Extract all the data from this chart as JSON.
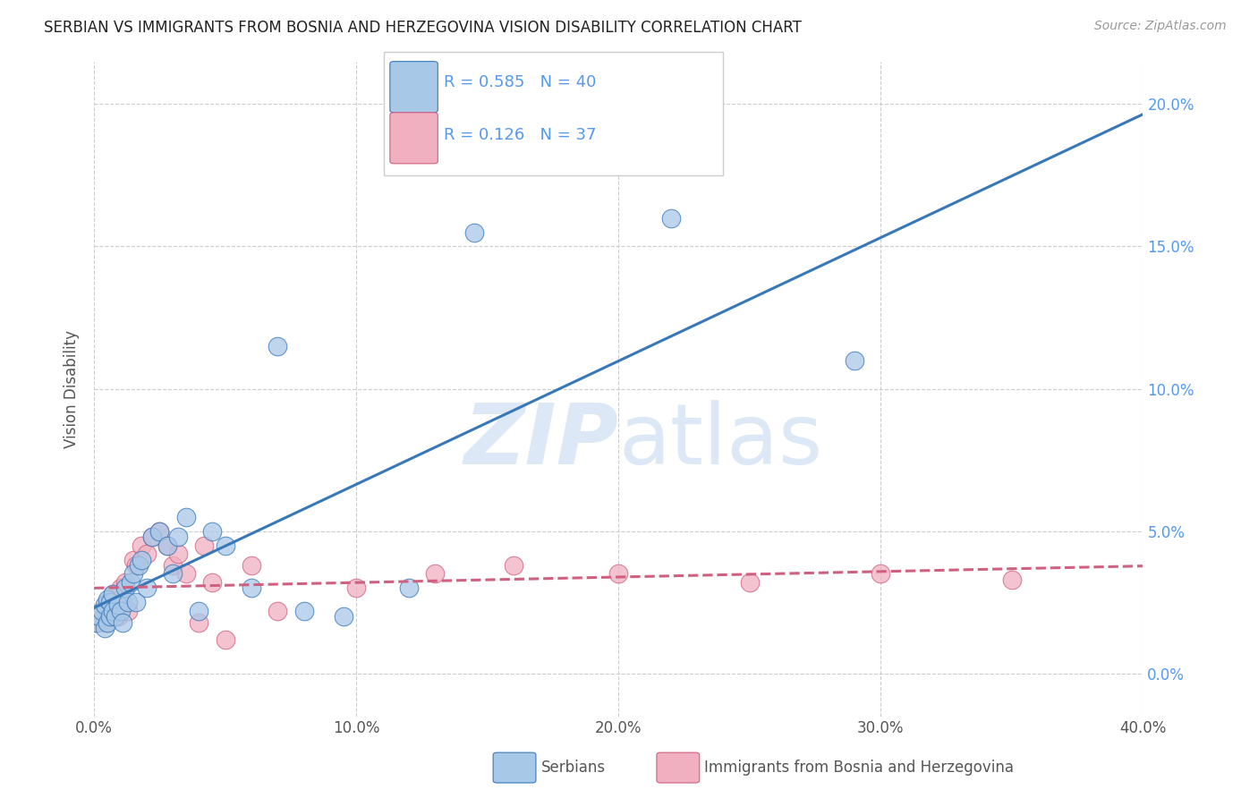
{
  "title": "SERBIAN VS IMMIGRANTS FROM BOSNIA AND HERZEGOVINA VISION DISABILITY CORRELATION CHART",
  "source": "Source: ZipAtlas.com",
  "xlabel": "",
  "ylabel": "Vision Disability",
  "xlim": [
    0.0,
    0.4
  ],
  "ylim": [
    -0.015,
    0.215
  ],
  "xticks": [
    0.0,
    0.1,
    0.2,
    0.3,
    0.4
  ],
  "yticks": [
    0.0,
    0.05,
    0.1,
    0.15,
    0.2
  ],
  "xtick_labels": [
    "0.0%",
    "10.0%",
    "20.0%",
    "30.0%",
    "40.0%"
  ],
  "ytick_labels": [
    "0.0%",
    "5.0%",
    "10.0%",
    "15.0%",
    "20.0%"
  ],
  "series": [
    {
      "name": "Serbians",
      "R": 0.585,
      "N": 40,
      "color": "#a8c8e8",
      "line_color": "#3878b8",
      "x": [
        0.001,
        0.002,
        0.003,
        0.004,
        0.004,
        0.005,
        0.005,
        0.006,
        0.006,
        0.007,
        0.007,
        0.008,
        0.009,
        0.01,
        0.011,
        0.012,
        0.013,
        0.014,
        0.015,
        0.016,
        0.017,
        0.018,
        0.02,
        0.022,
        0.025,
        0.028,
        0.03,
        0.032,
        0.035,
        0.04,
        0.045,
        0.05,
        0.06,
        0.07,
        0.08,
        0.095,
        0.12,
        0.145,
        0.22,
        0.29
      ],
      "y": [
        0.018,
        0.02,
        0.022,
        0.016,
        0.024,
        0.018,
        0.026,
        0.02,
        0.025,
        0.022,
        0.028,
        0.02,
        0.024,
        0.022,
        0.018,
        0.03,
        0.025,
        0.032,
        0.035,
        0.025,
        0.038,
        0.04,
        0.03,
        0.048,
        0.05,
        0.045,
        0.035,
        0.048,
        0.055,
        0.022,
        0.05,
        0.045,
        0.03,
        0.115,
        0.022,
        0.02,
        0.03,
        0.155,
        0.16,
        0.11
      ]
    },
    {
      "name": "Immigrants from Bosnia and Herzegovina",
      "R": 0.126,
      "N": 37,
      "color": "#f0b0c0",
      "line_color": "#d06080",
      "x": [
        0.001,
        0.002,
        0.003,
        0.004,
        0.005,
        0.005,
        0.006,
        0.007,
        0.008,
        0.009,
        0.01,
        0.011,
        0.012,
        0.013,
        0.015,
        0.016,
        0.018,
        0.02,
        0.022,
        0.025,
        0.028,
        0.03,
        0.032,
        0.035,
        0.04,
        0.042,
        0.045,
        0.05,
        0.06,
        0.07,
        0.1,
        0.13,
        0.16,
        0.2,
        0.25,
        0.3,
        0.35
      ],
      "y": [
        0.018,
        0.02,
        0.022,
        0.018,
        0.025,
        0.02,
        0.022,
        0.028,
        0.022,
        0.02,
        0.03,
        0.025,
        0.032,
        0.022,
        0.04,
        0.038,
        0.045,
        0.042,
        0.048,
        0.05,
        0.045,
        0.038,
        0.042,
        0.035,
        0.018,
        0.045,
        0.032,
        0.012,
        0.038,
        0.022,
        0.03,
        0.035,
        0.038,
        0.035,
        0.032,
        0.035,
        0.033
      ]
    }
  ],
  "background_color": "#ffffff",
  "grid_color": "#cccccc",
  "title_color": "#222222",
  "axis_label_color": "#555555",
  "right_ytick_color": "#5599ee",
  "watermark_text": "ZIPatlas",
  "watermark_color": "#dce8f5"
}
